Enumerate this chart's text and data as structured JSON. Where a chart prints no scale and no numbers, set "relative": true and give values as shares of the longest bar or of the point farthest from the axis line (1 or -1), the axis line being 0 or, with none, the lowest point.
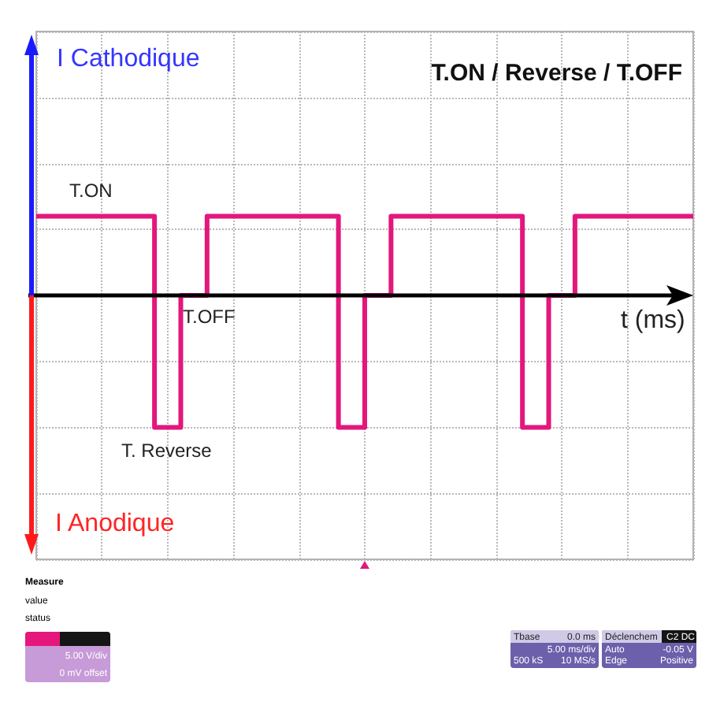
{
  "chart_data": {
    "type": "step",
    "title": "T.ON / Reverse / T.OFF",
    "xlabel": "t (ms)",
    "relative": true,
    "grid": true,
    "categories": [
      null,
      null,
      null,
      null,
      null,
      null,
      null,
      null,
      null,
      null,
      null,
      null,
      null,
      null,
      null,
      null,
      null,
      null,
      null,
      null,
      null,
      null,
      null,
      null,
      null,
      null,
      null,
      null,
      null,
      null,
      null,
      null,
      null,
      null,
      null,
      null,
      null,
      null,
      null,
      null,
      null,
      null,
      null,
      null,
      null,
      null,
      null,
      null,
      null,
      null,
      null
    ],
    "series": [
      {
        "color": "#e3177c",
        "values": [
          0.6,
          0.6,
          0.6,
          0.6,
          0.6,
          0.6,
          0.6,
          0.6,
          0.6,
          -1,
          -1,
          0,
          0,
          0.6,
          0.6,
          0.6,
          0.6,
          0.6,
          0.6,
          0.6,
          0.6,
          0.6,
          0.6,
          -1,
          -1,
          0,
          0,
          0.6,
          0.6,
          0.6,
          0.6,
          0.6,
          0.6,
          0.6,
          0.6,
          0.6,
          0.6,
          -1,
          -1,
          0,
          0,
          0.6,
          0.6,
          0.6,
          0.6,
          0.6,
          0.6,
          0.6,
          0.6,
          0.6,
          0.6
        ]
      }
    ],
    "annotations": [
      {
        "text": "T.ON",
        "y": 0.6
      },
      {
        "text": "T.OFF",
        "y": 0
      },
      {
        "text": "T. Reverse",
        "y": -1
      },
      "I Cathodique",
      "I Anodique",
      "Measure",
      "value",
      "status",
      "5.00 V/div",
      "0 mV offset",
      "Tbase",
      "0.0 ms",
      "5.00 ms/div",
      "500 kS",
      "10 MS/s",
      "Déclenchem",
      "C2 DC",
      "Auto",
      "-0.05 V",
      "Edge",
      "Positive"
    ]
  }
}
